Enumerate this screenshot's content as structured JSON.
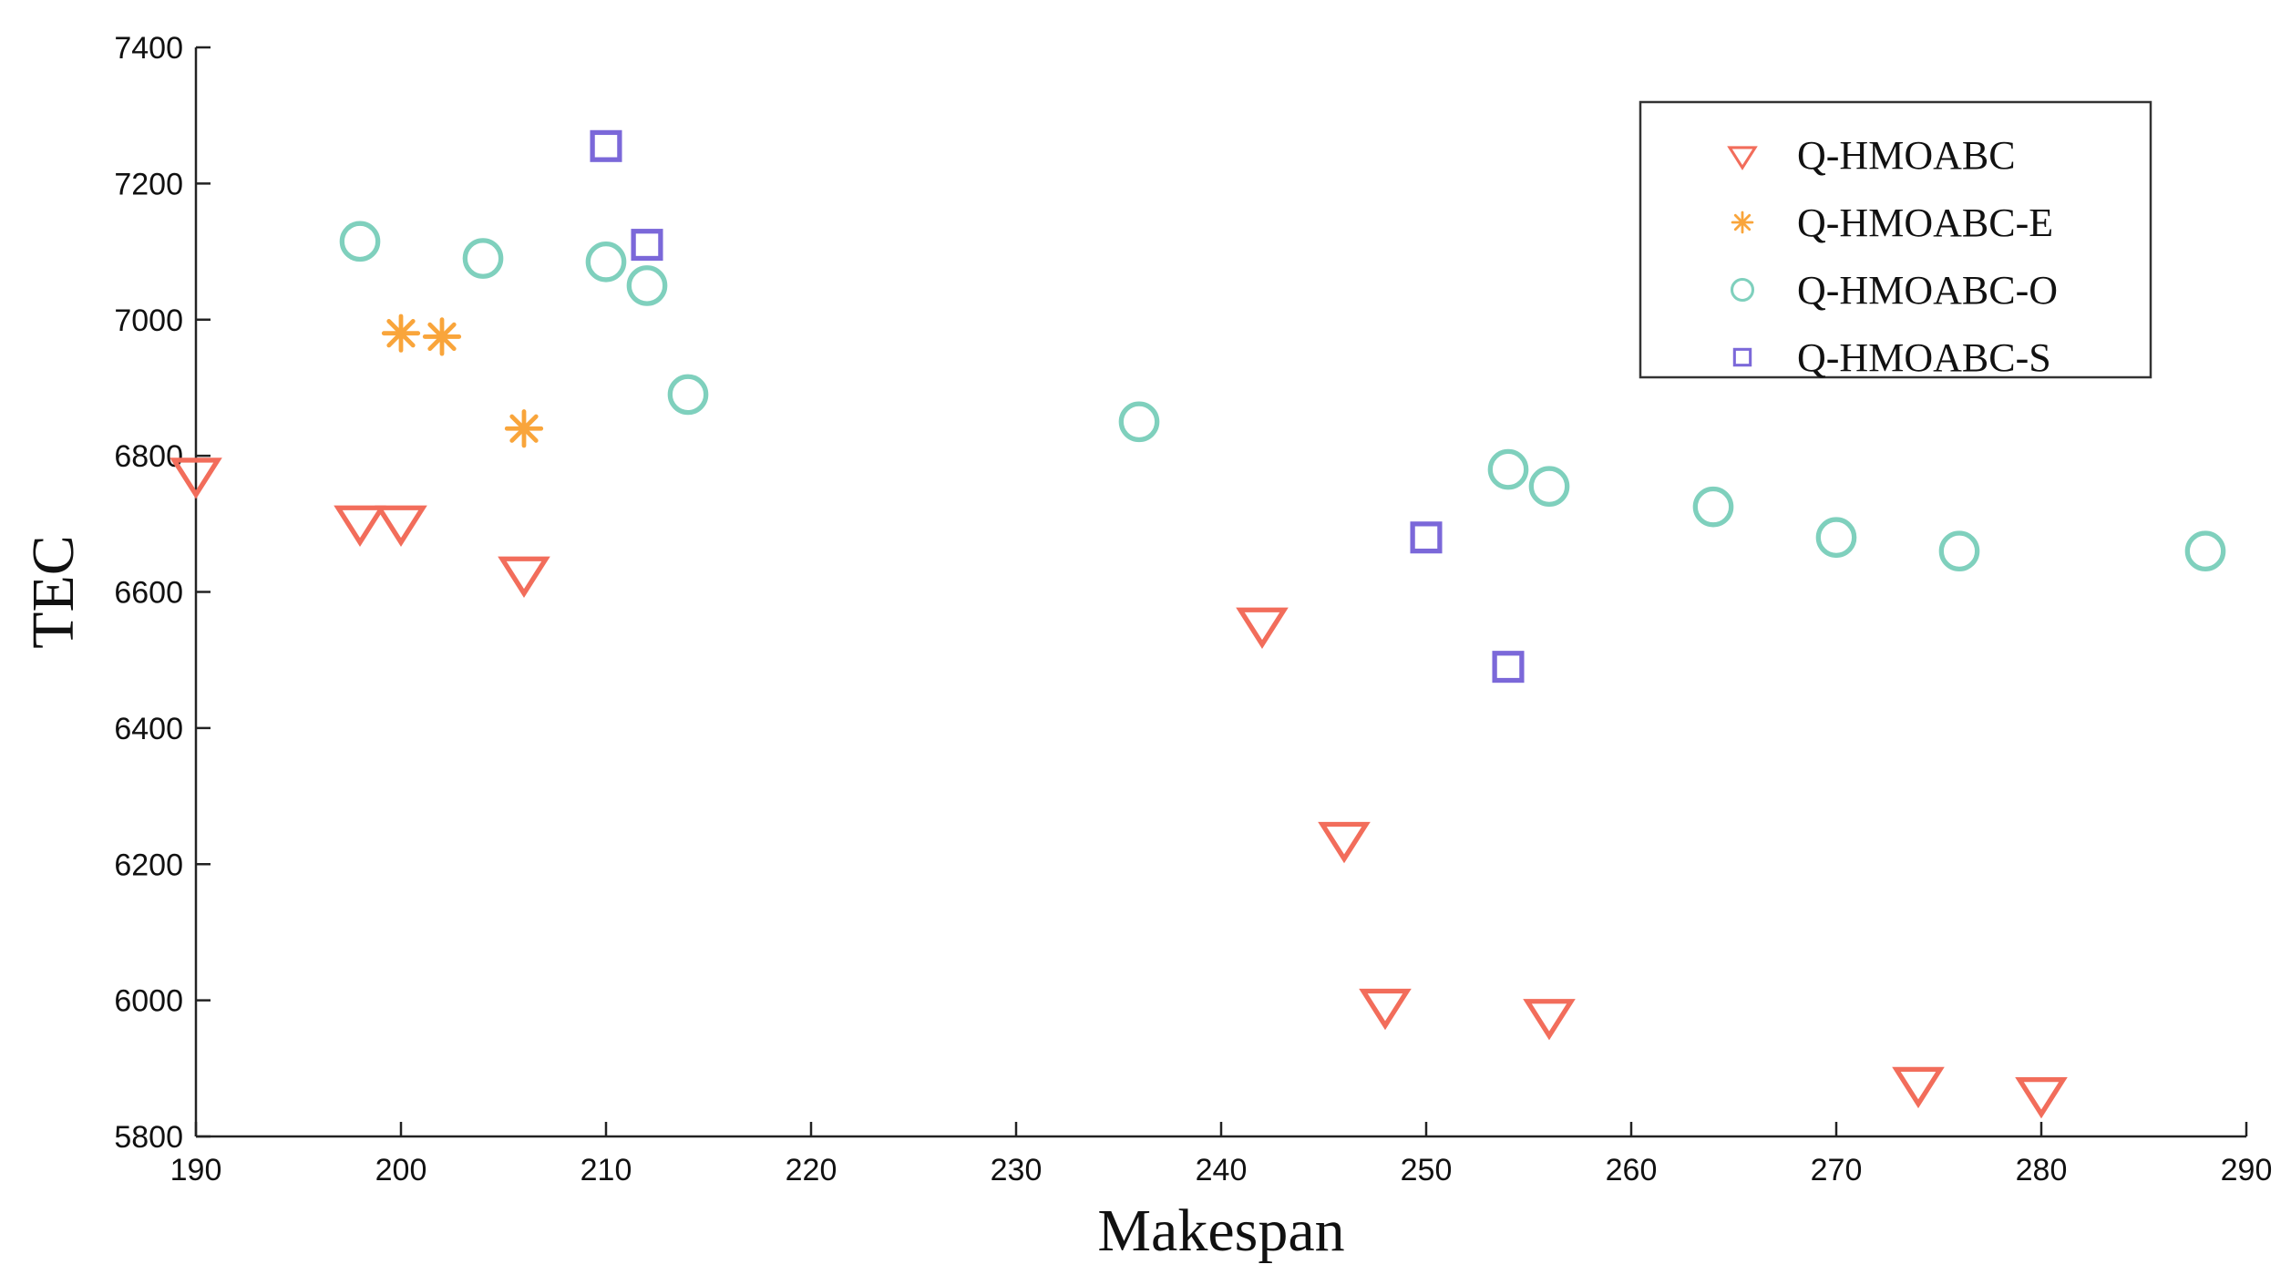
{
  "chart_data": {
    "type": "scatter",
    "title": "",
    "xlabel": "Makespan",
    "ylabel": "TEC",
    "xlim": [
      190,
      290
    ],
    "ylim": [
      5800,
      7400
    ],
    "xticks": [
      190,
      200,
      210,
      220,
      230,
      240,
      250,
      260,
      270,
      280,
      290
    ],
    "yticks": [
      5800,
      6000,
      6200,
      6400,
      6600,
      6800,
      7000,
      7200,
      7400
    ],
    "xtick_labels": [
      "190",
      "200",
      "210",
      "220",
      "230",
      "240",
      "250",
      "260",
      "270",
      "280",
      "290"
    ],
    "ytick_labels": [
      "5800",
      "6000",
      "6200",
      "6400",
      "6600",
      "6800",
      "7000",
      "7200",
      "7400"
    ],
    "grid": false,
    "legend_position": "top-right",
    "series": [
      {
        "name": "Q-HMOABC",
        "marker": "triangle-down",
        "color": "#f26d5b",
        "points": [
          [
            190,
            6775
          ],
          [
            198,
            6705
          ],
          [
            200,
            6705
          ],
          [
            206,
            6630
          ],
          [
            242,
            6555
          ],
          [
            246,
            6240
          ],
          [
            248,
            5995
          ],
          [
            256,
            5980
          ],
          [
            274,
            5880
          ],
          [
            280,
            5865
          ]
        ]
      },
      {
        "name": "Q-HMOABC-E",
        "marker": "asterisk",
        "color": "#f9a53b",
        "points": [
          [
            200,
            6980
          ],
          [
            202,
            6975
          ],
          [
            206,
            6840
          ]
        ]
      },
      {
        "name": "Q-HMOABC-O",
        "marker": "circle",
        "color": "#7fd0bd",
        "points": [
          [
            198,
            7115
          ],
          [
            204,
            7090
          ],
          [
            210,
            7085
          ],
          [
            212,
            7050
          ],
          [
            214,
            6890
          ],
          [
            236,
            6850
          ],
          [
            254,
            6780
          ],
          [
            256,
            6755
          ],
          [
            264,
            6725
          ],
          [
            270,
            6680
          ],
          [
            276,
            6660
          ],
          [
            288,
            6660
          ]
        ]
      },
      {
        "name": "Q-HMOABC-S",
        "marker": "square",
        "color": "#7b68d9",
        "points": [
          [
            210,
            7255
          ],
          [
            212,
            7110
          ],
          [
            250,
            6680
          ],
          [
            254,
            6490
          ]
        ]
      }
    ]
  }
}
